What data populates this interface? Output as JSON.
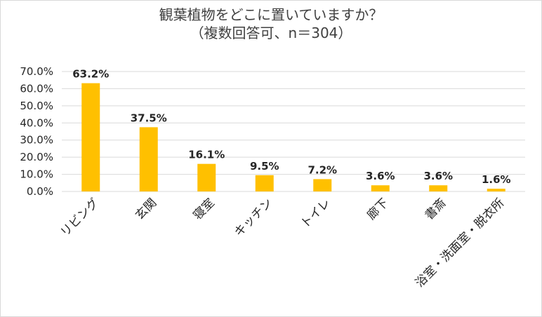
{
  "chart_data": {
    "type": "bar",
    "title": "観葉植物をどこに置いていますか？",
    "subtitle": "（複数回答可、n＝304）",
    "categories": [
      "リビング",
      "玄関",
      "寝室",
      "キッチン",
      "トイレ",
      "廊下",
      "書斎",
      "浴室・洗面室・脱衣所"
    ],
    "values": [
      63.2,
      37.5,
      16.1,
      9.5,
      7.2,
      3.6,
      3.6,
      1.6
    ],
    "data_labels": [
      "63.2%",
      "37.5%",
      "16.1%",
      "9.5%",
      "7.2%",
      "3.6%",
      "3.6%",
      "1.6%"
    ],
    "y_ticks": [
      "0.0%",
      "10.0%",
      "20.0%",
      "30.0%",
      "40.0%",
      "50.0%",
      "60.0%",
      "70.0%"
    ],
    "ylim": [
      0,
      70
    ],
    "grid": true,
    "bar_color": "#FFC000",
    "grid_color": "#d9d9d9"
  }
}
